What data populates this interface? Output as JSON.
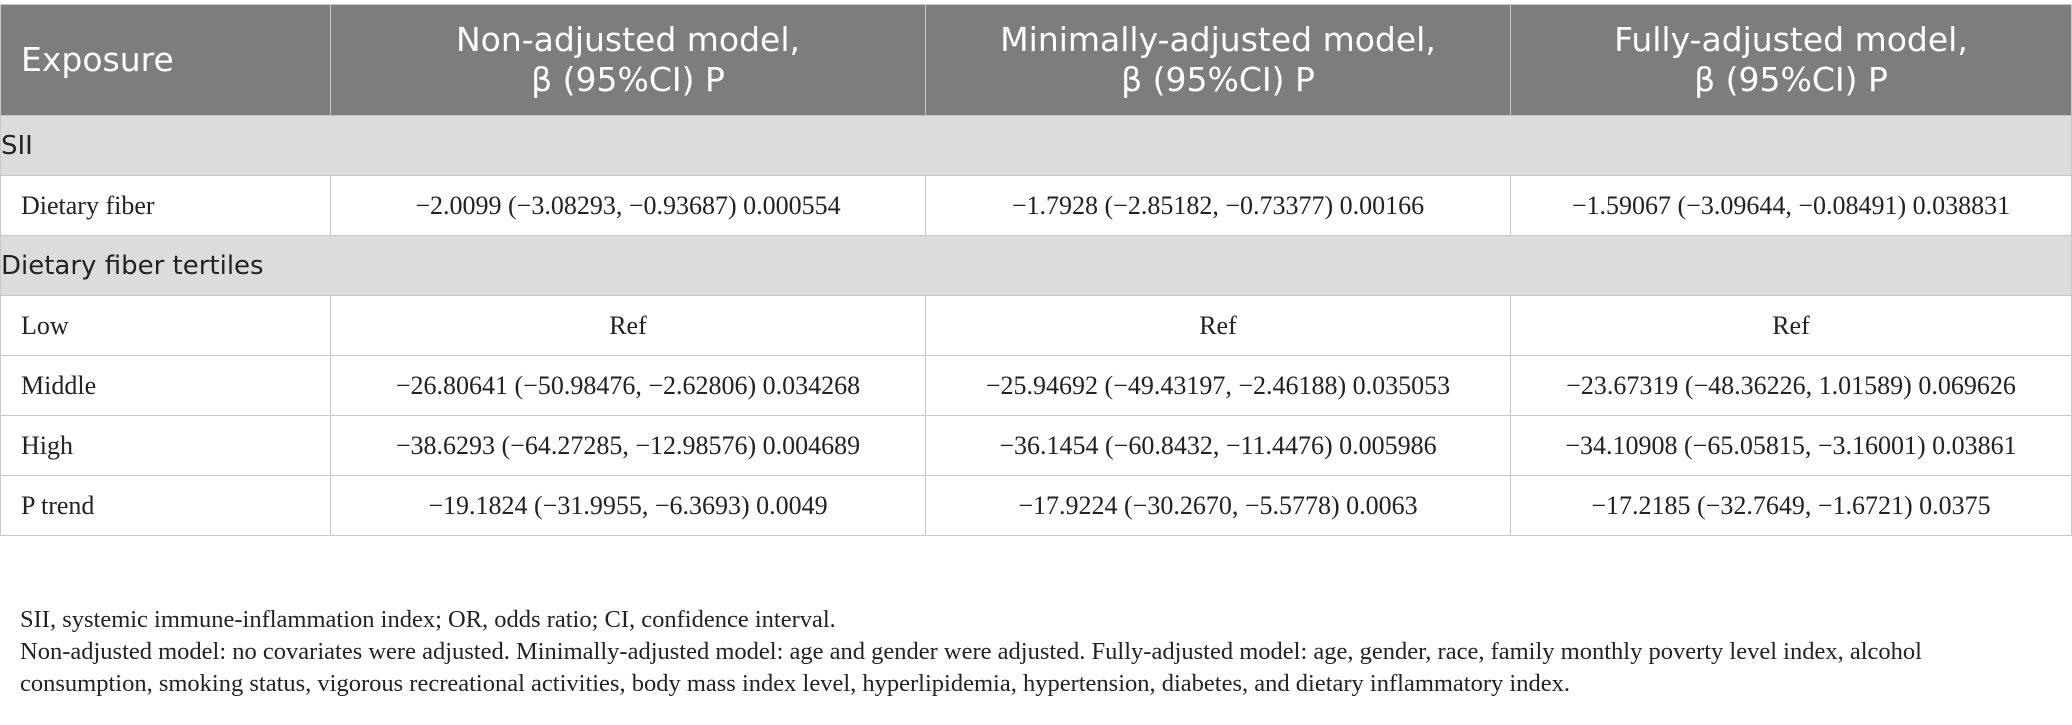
{
  "table": {
    "headers": [
      {
        "line1": "Exposure",
        "line2": ""
      },
      {
        "line1": "Non-adjusted model,",
        "line2": "β (95%CI) P"
      },
      {
        "line1": "Minimally-adjusted model,",
        "line2": "β (95%CI) P"
      },
      {
        "line1": "Fully-adjusted model,",
        "line2": "β (95%CI) P"
      }
    ],
    "sections": [
      {
        "title": "SII",
        "rows": [
          {
            "exposure": "Dietary fiber",
            "non_adjusted": "−2.0099 (−3.08293, −0.93687) 0.000554",
            "minimally_adjusted": "−1.7928 (−2.85182, −0.73377) 0.00166",
            "fully_adjusted": "−1.59067 (−3.09644, −0.08491) 0.038831"
          }
        ]
      },
      {
        "title": "Dietary fiber tertiles",
        "rows": [
          {
            "exposure": "Low",
            "non_adjusted": "Ref",
            "minimally_adjusted": "Ref",
            "fully_adjusted": "Ref"
          },
          {
            "exposure": "Middle",
            "non_adjusted": "−26.80641 (−50.98476, −2.62806) 0.034268",
            "minimally_adjusted": "−25.94692 (−49.43197, −2.46188) 0.035053",
            "fully_adjusted": "−23.67319 (−48.36226, 1.01589) 0.069626"
          },
          {
            "exposure": "High",
            "non_adjusted": "−38.6293 (−64.27285, −12.98576) 0.004689",
            "minimally_adjusted": "−36.1454 (−60.8432, −11.4476) 0.005986",
            "fully_adjusted": "−34.10908 (−65.05815, −3.16001) 0.03861"
          },
          {
            "exposure": "P trend",
            "non_adjusted": "−19.1824 (−31.9955, −6.3693) 0.0049",
            "minimally_adjusted": "−17.9224 (−30.2670, −5.5778) 0.0063",
            "fully_adjusted": "−17.2185 (−32.7649, −1.6721) 0.0375"
          }
        ]
      }
    ]
  },
  "footnotes": {
    "abbreviations": "SII, systemic immune-inflammation index; OR, odds ratio; CI, confidence interval.",
    "models": "Non-adjusted model: no covariates were adjusted. Minimally-adjusted model: age and gender were adjusted. Fully-adjusted model: age, gender, race, family monthly poverty level index, alcohol consumption, smoking status, vigorous recreational activities, body mass index level, hyperlipidemia, hypertension, diabetes, and dietary inflammatory index."
  }
}
